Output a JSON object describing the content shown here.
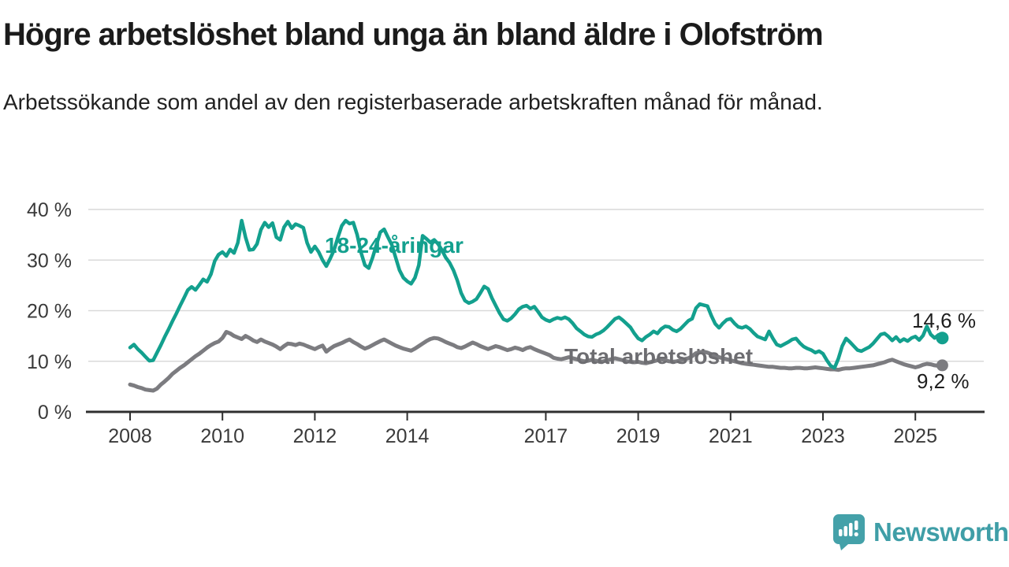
{
  "header": {
    "title": "Högre arbetslöshet bland unga än bland äldre i Olofström",
    "subtitle": "Arbetssökande som andel av den registerbaserade arbetskraften månad för månad."
  },
  "branding": {
    "logo_text": "Newsworthy",
    "logo_color": "#44a1a9"
  },
  "colors": {
    "young_line": "#13a08e",
    "total_line": "#7c7c80",
    "axis": "#2f2f2f",
    "grid": "#d9d9d9",
    "tick_text": "#3a3a3a"
  },
  "chart_data": {
    "type": "line",
    "title": "",
    "xlabel": "",
    "ylabel": "",
    "frequency": "monthly",
    "start_month": "2008-01",
    "end_month": "2025-08",
    "ylim": [
      0,
      40
    ],
    "grid": "horizontal",
    "y_ticks": [
      0,
      10,
      20,
      30,
      40
    ],
    "y_tick_suffix": " %",
    "x_tick_years": [
      2008,
      2010,
      2012,
      2014,
      2017,
      2019,
      2021,
      2023,
      2025
    ],
    "x_tick_labels": [
      "2008",
      "2010",
      "2012",
      "2014",
      "2017",
      "2019",
      "2021",
      "2023",
      "2025"
    ],
    "series": [
      {
        "name": "18-24-åringar",
        "color": "#13a08e",
        "end_label": "14,6 %",
        "end_value": 14.6,
        "values": [
          12.7,
          13.3,
          12.4,
          11.7,
          10.9,
          10.1,
          10.2,
          11.7,
          13.2,
          14.8,
          16.3,
          17.9,
          19.4,
          21.0,
          22.5,
          24.1,
          24.7,
          24.1,
          25.1,
          26.2,
          25.7,
          27.2,
          29.8,
          31.1,
          31.6,
          30.8,
          32.1,
          31.4,
          33.4,
          37.8,
          34.5,
          32.0,
          32.1,
          33.2,
          36.0,
          37.4,
          36.5,
          37.3,
          34.5,
          34.0,
          36.5,
          37.6,
          36.3,
          37.1,
          36.8,
          36.4,
          33.4,
          31.6,
          32.7,
          31.6,
          30.0,
          28.8,
          30.3,
          32.0,
          34.5,
          36.8,
          37.8,
          37.2,
          37.4,
          35.0,
          31.5,
          29.0,
          28.4,
          30.5,
          33.0,
          35.5,
          36.1,
          34.5,
          33.0,
          30.5,
          28.0,
          26.5,
          25.8,
          25.3,
          26.5,
          29.0,
          34.8,
          34.2,
          33.5,
          34.0,
          33.2,
          32.0,
          30.5,
          29.5,
          28.0,
          26.0,
          23.5,
          22.0,
          21.5,
          21.8,
          22.3,
          23.5,
          24.8,
          24.3,
          22.5,
          21.0,
          19.5,
          18.3,
          18.0,
          18.5,
          19.3,
          20.3,
          20.8,
          21.0,
          20.4,
          20.8,
          19.8,
          18.7,
          18.2,
          17.9,
          18.3,
          18.6,
          18.4,
          18.7,
          18.3,
          17.5,
          16.5,
          15.9,
          15.3,
          14.9,
          14.8,
          15.3,
          15.6,
          16.1,
          16.8,
          17.6,
          18.4,
          18.7,
          18.1,
          17.4,
          16.7,
          15.5,
          14.5,
          14.1,
          14.8,
          15.3,
          15.9,
          15.5,
          16.4,
          16.9,
          16.8,
          16.2,
          15.9,
          16.4,
          17.2,
          18.0,
          18.4,
          20.5,
          21.3,
          21.1,
          20.9,
          19.0,
          17.4,
          16.6,
          17.5,
          18.2,
          18.4,
          17.5,
          16.8,
          16.6,
          16.9,
          16.4,
          15.6,
          14.9,
          14.6,
          14.3,
          15.9,
          14.5,
          13.3,
          13.0,
          13.4,
          13.8,
          14.3,
          14.5,
          13.6,
          12.9,
          12.5,
          12.2,
          11.7,
          12.0,
          11.5,
          10.2,
          9.1,
          8.7,
          10.5,
          13.0,
          14.5,
          13.8,
          13.0,
          12.2,
          12.0,
          12.4,
          12.8,
          13.5,
          14.4,
          15.3,
          15.5,
          14.9,
          14.1,
          14.8,
          13.9,
          14.4,
          14.0,
          14.6,
          14.9,
          14.2,
          15.1,
          16.9,
          15.3,
          14.6,
          15.2,
          14.6
        ]
      },
      {
        "name": "Total arbetslöshet",
        "color": "#7c7c80",
        "end_label": "9,2 %",
        "end_value": 9.2,
        "values": [
          5.4,
          5.2,
          4.9,
          4.7,
          4.4,
          4.3,
          4.2,
          4.6,
          5.4,
          6.0,
          6.7,
          7.5,
          8.1,
          8.7,
          9.2,
          9.8,
          10.4,
          11.0,
          11.5,
          12.1,
          12.7,
          13.2,
          13.6,
          13.9,
          14.6,
          15.8,
          15.5,
          15.0,
          14.7,
          14.4,
          15.0,
          14.6,
          14.1,
          13.8,
          14.3,
          13.9,
          13.6,
          13.3,
          12.9,
          12.4,
          13.0,
          13.5,
          13.4,
          13.2,
          13.5,
          13.3,
          13.0,
          12.7,
          12.4,
          12.8,
          13.1,
          11.9,
          12.5,
          13.0,
          13.3,
          13.6,
          14.0,
          14.3,
          13.8,
          13.4,
          12.9,
          12.5,
          12.8,
          13.2,
          13.6,
          14.0,
          14.3,
          13.9,
          13.5,
          13.1,
          12.8,
          12.5,
          12.3,
          12.1,
          12.5,
          13.0,
          13.5,
          14.0,
          14.4,
          14.6,
          14.5,
          14.2,
          13.8,
          13.5,
          13.2,
          12.8,
          12.6,
          12.9,
          13.3,
          13.7,
          13.4,
          13.0,
          12.7,
          12.4,
          12.7,
          13.0,
          12.8,
          12.5,
          12.2,
          12.4,
          12.7,
          12.5,
          12.2,
          12.6,
          12.8,
          12.4,
          12.1,
          11.8,
          11.5,
          11.2,
          10.7,
          10.5,
          10.4,
          10.6,
          10.8,
          10.6,
          10.4,
          10.2,
          10.0,
          10.1,
          10.3,
          10.1,
          9.9,
          10.0,
          10.2,
          10.4,
          10.6,
          10.4,
          10.2,
          10.0,
          9.9,
          9.8,
          9.9,
          9.7,
          9.6,
          9.8,
          10.0,
          10.2,
          10.4,
          10.2,
          10.0,
          9.9,
          10.0,
          10.2,
          10.4,
          10.6,
          11.0,
          11.6,
          11.8,
          11.9,
          11.7,
          11.4,
          11.1,
          10.8,
          10.6,
          10.4,
          10.2,
          10.0,
          9.8,
          9.6,
          9.5,
          9.4,
          9.3,
          9.2,
          9.1,
          9.0,
          8.9,
          8.9,
          8.8,
          8.7,
          8.7,
          8.6,
          8.6,
          8.7,
          8.7,
          8.6,
          8.6,
          8.7,
          8.8,
          8.7,
          8.6,
          8.5,
          8.4,
          8.4,
          8.3,
          8.5,
          8.6,
          8.6,
          8.7,
          8.8,
          8.9,
          9.0,
          9.1,
          9.2,
          9.4,
          9.6,
          9.8,
          10.1,
          10.3,
          10.0,
          9.7,
          9.4,
          9.2,
          9.0,
          8.8,
          9.0,
          9.3,
          9.5,
          9.4,
          9.2,
          9.1,
          9.2
        ]
      }
    ]
  }
}
